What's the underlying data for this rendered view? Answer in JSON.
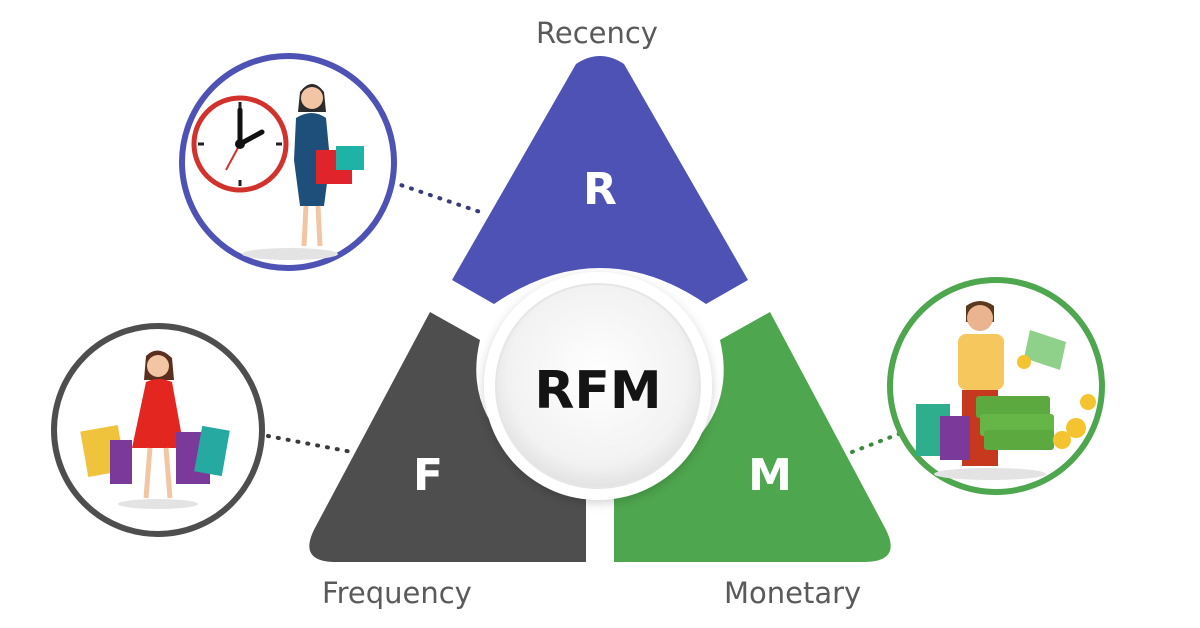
{
  "diagram": {
    "center_label": "RFM",
    "segments": [
      {
        "key": "recency",
        "letter": "R",
        "label": "Recency",
        "color": "#4e52b5"
      },
      {
        "key": "frequency",
        "letter": "F",
        "label": "Frequency",
        "color": "#4e4e4e"
      },
      {
        "key": "monetary",
        "letter": "M",
        "label": "Monetary",
        "color": "#4ea64e"
      }
    ]
  },
  "colors": {
    "recency_ring": "#4e52b5",
    "frequency_ring": "#4e4e4e",
    "monetary_ring": "#4ea64e",
    "center_bg": "#f0f0f0",
    "text_gray": "#5a5a5a"
  },
  "illustrations": {
    "recency": "woman-with-clock-and-shopping-bags",
    "frequency": "woman-carrying-shopping-bags",
    "monetary": "man-with-shopping-bags-and-money"
  }
}
